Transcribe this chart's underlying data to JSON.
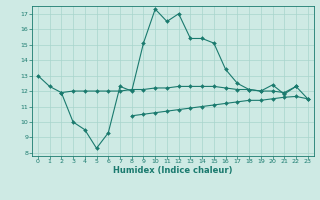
{
  "xlabel": "Humidex (Indice chaleur)",
  "background_color": "#ceeae4",
  "grid_color": "#a8d5cc",
  "line_color": "#1a7a6e",
  "xlim": [
    -0.5,
    23.5
  ],
  "ylim": [
    7.8,
    17.5
  ],
  "yticks": [
    8,
    9,
    10,
    11,
    12,
    13,
    14,
    15,
    16,
    17
  ],
  "xticks": [
    0,
    1,
    2,
    3,
    4,
    5,
    6,
    7,
    8,
    9,
    10,
    11,
    12,
    13,
    14,
    15,
    16,
    17,
    18,
    19,
    20,
    21,
    22,
    23
  ],
  "line1_x": [
    0,
    1,
    2,
    3,
    4,
    5,
    6,
    7,
    8,
    9,
    10,
    11,
    12,
    13,
    14,
    15,
    16,
    17,
    18,
    19,
    20,
    21,
    22
  ],
  "line1_y": [
    13.0,
    12.3,
    11.9,
    10.0,
    9.5,
    8.3,
    9.3,
    12.3,
    12.0,
    15.1,
    17.3,
    16.5,
    17.0,
    15.4,
    15.4,
    15.1,
    13.4,
    12.5,
    12.1,
    12.0,
    12.4,
    11.8,
    12.3
  ],
  "line2_x": [
    2,
    3,
    4,
    5,
    6,
    7,
    8,
    9,
    10,
    11,
    12,
    13,
    14,
    15,
    16,
    17,
    18,
    19,
    20,
    21,
    22,
    23
  ],
  "line2_y": [
    11.9,
    12.0,
    12.0,
    12.0,
    12.0,
    12.0,
    12.1,
    12.1,
    12.2,
    12.2,
    12.3,
    12.3,
    12.3,
    12.3,
    12.2,
    12.1,
    12.1,
    12.0,
    12.0,
    11.9,
    12.3,
    11.5
  ],
  "line3_x": [
    8,
    9,
    10,
    11,
    12,
    13,
    14,
    15,
    16,
    17,
    18,
    19,
    20,
    21,
    22,
    23
  ],
  "line3_y": [
    10.4,
    10.5,
    10.6,
    10.7,
    10.8,
    10.9,
    11.0,
    11.1,
    11.2,
    11.3,
    11.4,
    11.4,
    11.5,
    11.6,
    11.65,
    11.5
  ]
}
